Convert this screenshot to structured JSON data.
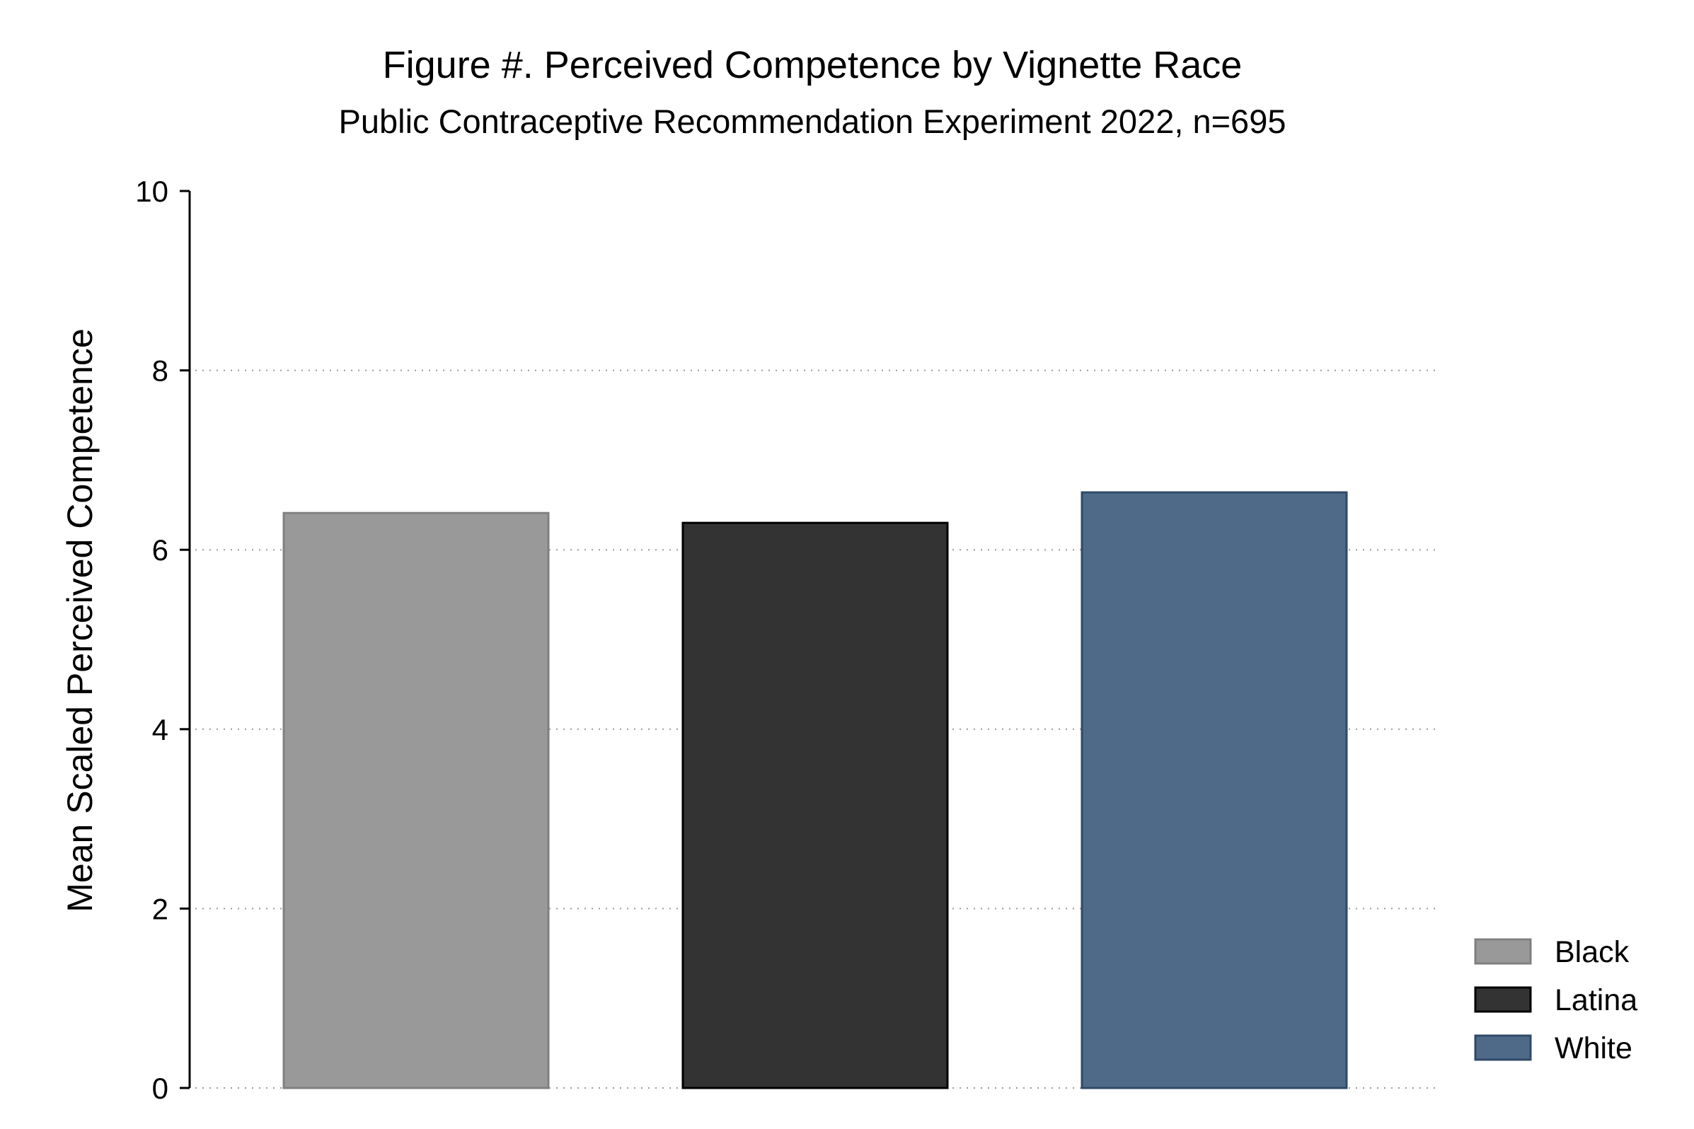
{
  "chart_data": {
    "type": "bar",
    "title": "Figure #. Perceived Competence by Vignette Race",
    "subtitle": "Public Contraceptive Recommendation Experiment 2022, n=695",
    "xlabel": "",
    "ylabel": "Mean Scaled Perceived Competence",
    "ylim": [
      0,
      10
    ],
    "yticks": [
      0,
      2,
      4,
      6,
      8,
      10
    ],
    "grid": true,
    "legend_position": "bottom-right",
    "categories": [
      "Black",
      "Latina",
      "White"
    ],
    "values": [
      6.41,
      6.3,
      6.64
    ],
    "colors": [
      "#999999",
      "#333333",
      "#4f6a88"
    ],
    "edge_colors": [
      "#808080",
      "#000000",
      "#2f4a68"
    ]
  }
}
